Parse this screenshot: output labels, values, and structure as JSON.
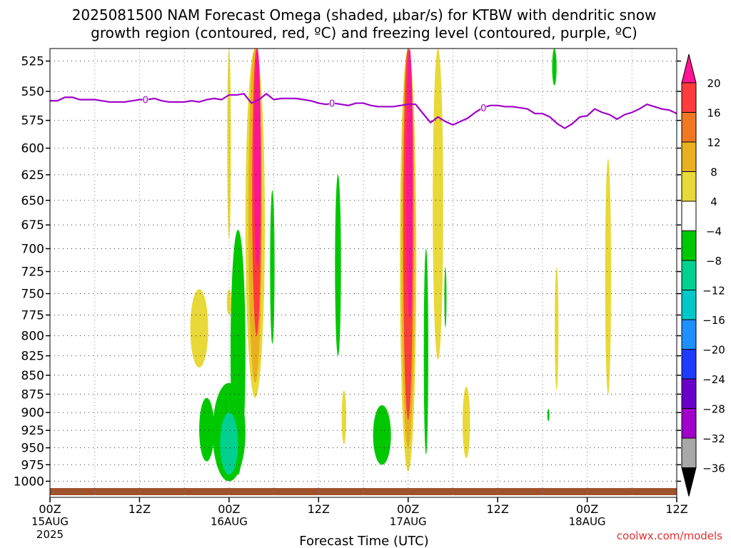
{
  "chart_data": {
    "type": "heatmap",
    "title_line1": "2025081500 NAM Forecast Omega (shaded, μbar/s) for KTBW with dendritic snow",
    "title_line2": "growth region (contoured, red, ºC) and freezing level (contoured, purple, ºC)",
    "xlabel": "Forecast Time (UTC)",
    "credit": "coolwx.com/models",
    "y_axis": {
      "ticks": [
        525,
        550,
        575,
        600,
        625,
        650,
        675,
        700,
        725,
        750,
        775,
        800,
        825,
        850,
        875,
        900,
        925,
        950,
        975,
        1000
      ],
      "range": [
        515,
        1025
      ],
      "scale": "log-pressure"
    },
    "x_axis": {
      "range_hours": [
        0,
        84
      ],
      "ticks": [
        {
          "hour": 0,
          "label": "00Z",
          "sub1": "15AUG",
          "sub2": "2025"
        },
        {
          "hour": 12,
          "label": "12Z",
          "sub1": "",
          "sub2": ""
        },
        {
          "hour": 24,
          "label": "00Z",
          "sub1": "16AUG",
          "sub2": ""
        },
        {
          "hour": 36,
          "label": "12Z",
          "sub1": "",
          "sub2": ""
        },
        {
          "hour": 48,
          "label": "00Z",
          "sub1": "17AUG",
          "sub2": ""
        },
        {
          "hour": 60,
          "label": "12Z",
          "sub1": "",
          "sub2": ""
        },
        {
          "hour": 72,
          "label": "00Z",
          "sub1": "18AUG",
          "sub2": ""
        },
        {
          "hour": 84,
          "label": "12Z",
          "sub1": "",
          "sub2": ""
        }
      ]
    },
    "grid": true,
    "colorbar": {
      "labels": [
        "20",
        "16",
        "12",
        "8",
        "4",
        "−4",
        "−8",
        "−12",
        "−16",
        "−20",
        "−24",
        "−28",
        "−32",
        "−36"
      ],
      "colors": [
        "#ff1493",
        "#ff3b3b",
        "#f07820",
        "#e8b020",
        "#e8d838",
        "#ffffff",
        "#00c800",
        "#00d090",
        "#00c8c8",
        "#1e90ff",
        "#1e3cff",
        "#6a00c8",
        "#a000c8",
        "#a8a8a8",
        "#000000"
      ]
    },
    "freezing_level": {
      "label": "0",
      "color": "#a000c8",
      "hours": [
        0,
        1,
        2,
        3,
        4,
        5,
        6,
        7,
        8,
        9,
        10,
        11,
        12,
        13,
        14,
        15,
        16,
        17,
        18,
        19,
        20,
        21,
        22,
        23,
        24,
        25,
        26,
        27,
        28,
        29,
        30,
        31,
        32,
        33,
        34,
        35,
        36,
        37,
        38,
        39,
        40,
        41,
        42,
        43,
        44,
        45,
        46,
        47,
        48,
        49,
        50,
        51,
        52,
        53,
        54,
        55,
        56,
        57,
        58,
        59,
        60,
        61,
        62,
        63,
        64,
        65,
        66,
        67,
        68,
        69,
        70,
        71,
        72,
        73,
        74,
        75,
        76,
        77,
        78,
        79,
        80,
        81,
        82,
        83,
        84
      ],
      "pressures": [
        558,
        558,
        555,
        555,
        557,
        557,
        557,
        558,
        559,
        559,
        559,
        558,
        557,
        557,
        556,
        558,
        559,
        559,
        559,
        558,
        559,
        557,
        556,
        557,
        553,
        553,
        552,
        560,
        557,
        552,
        557,
        556,
        556,
        556,
        557,
        558,
        560,
        561,
        560,
        561,
        562,
        560,
        560,
        562,
        563,
        563,
        563,
        562,
        561,
        561,
        569,
        577,
        572,
        576,
        579,
        576,
        573,
        568,
        564,
        562,
        562,
        563,
        563,
        564,
        565,
        569,
        569,
        572,
        578,
        582,
        578,
        572,
        571,
        565,
        568,
        570,
        574,
        570,
        568,
        565,
        561,
        563,
        565,
        566,
        569
      ]
    },
    "omega_regions": [
      {
        "level": "-8",
        "hour_center": 21.0,
        "p_top": 880,
        "p_bottom": 970,
        "half_width_hours": 1.0
      },
      {
        "level": "-8",
        "hour_center": 24.0,
        "p_top": 860,
        "p_bottom": 1000,
        "half_width_hours": 2.2
      },
      {
        "level": "-8",
        "hour_center": 25.2,
        "p_top": 680,
        "p_bottom": 990,
        "half_width_hours": 1.0
      },
      {
        "level": "-12",
        "hour_center": 24.0,
        "p_top": 900,
        "p_bottom": 990,
        "half_width_hours": 1.2
      },
      {
        "level": "-8",
        "hour_center": 29.8,
        "p_top": 640,
        "p_bottom": 810,
        "half_width_hours": 0.3
      },
      {
        "level": "-8",
        "hour_center": 38.6,
        "p_top": 625,
        "p_bottom": 825,
        "half_width_hours": 0.4
      },
      {
        "level": "-8",
        "hour_center": 44.5,
        "p_top": 890,
        "p_bottom": 975,
        "half_width_hours": 1.2
      },
      {
        "level": "-8",
        "hour_center": 50.4,
        "p_top": 700,
        "p_bottom": 960,
        "half_width_hours": 0.3
      },
      {
        "level": "-8",
        "hour_center": 53.0,
        "p_top": 720,
        "p_bottom": 790,
        "half_width_hours": 0.1
      },
      {
        "level": "-8",
        "hour_center": 67.6,
        "p_top": 515,
        "p_bottom": 545,
        "half_width_hours": 0.3
      },
      {
        "level": "-8",
        "hour_center": 66.8,
        "p_top": 895,
        "p_bottom": 912,
        "half_width_hours": 0.1
      },
      {
        "level": "4",
        "hour_center": 20.0,
        "p_top": 745,
        "p_bottom": 840,
        "half_width_hours": 1.2
      },
      {
        "level": "4",
        "hour_center": 24.0,
        "p_top": 745,
        "p_bottom": 775,
        "half_width_hours": 0.3
      },
      {
        "level": "4",
        "hour_center": 24.0,
        "p_top": 515,
        "p_bottom": 690,
        "half_width_hours": 0.25
      },
      {
        "level": "4",
        "hour_center": 27.5,
        "p_top": 515,
        "p_bottom": 880,
        "half_width_hours": 1.3
      },
      {
        "level": "8",
        "hour_center": 27.5,
        "p_top": 515,
        "p_bottom": 860,
        "half_width_hours": 0.9
      },
      {
        "level": "16",
        "hour_center": 27.7,
        "p_top": 515,
        "p_bottom": 800,
        "half_width_hours": 0.6
      },
      {
        "level": "20",
        "hour_center": 27.8,
        "p_top": 515,
        "p_bottom": 720,
        "half_width_hours": 0.45
      },
      {
        "level": "4",
        "hour_center": 39.4,
        "p_top": 870,
        "p_bottom": 945,
        "half_width_hours": 0.3
      },
      {
        "level": "4",
        "hour_center": 48.0,
        "p_top": 515,
        "p_bottom": 985,
        "half_width_hours": 1.1
      },
      {
        "level": "8",
        "hour_center": 48.0,
        "p_top": 515,
        "p_bottom": 950,
        "half_width_hours": 0.9
      },
      {
        "level": "16",
        "hour_center": 48.0,
        "p_top": 515,
        "p_bottom": 910,
        "half_width_hours": 0.65
      },
      {
        "level": "20",
        "hour_center": 48.2,
        "p_top": 515,
        "p_bottom": 780,
        "half_width_hours": 0.45
      },
      {
        "level": "4",
        "hour_center": 52.0,
        "p_top": 515,
        "p_bottom": 830,
        "half_width_hours": 0.7
      },
      {
        "level": "4",
        "hour_center": 55.8,
        "p_top": 865,
        "p_bottom": 965,
        "half_width_hours": 0.5
      },
      {
        "level": "4",
        "hour_center": 67.9,
        "p_top": 720,
        "p_bottom": 870,
        "half_width_hours": 0.25
      },
      {
        "level": "4",
        "hour_center": 74.8,
        "p_top": 610,
        "p_bottom": 875,
        "half_width_hours": 0.4
      }
    ],
    "ground_color": "#a0522d"
  }
}
